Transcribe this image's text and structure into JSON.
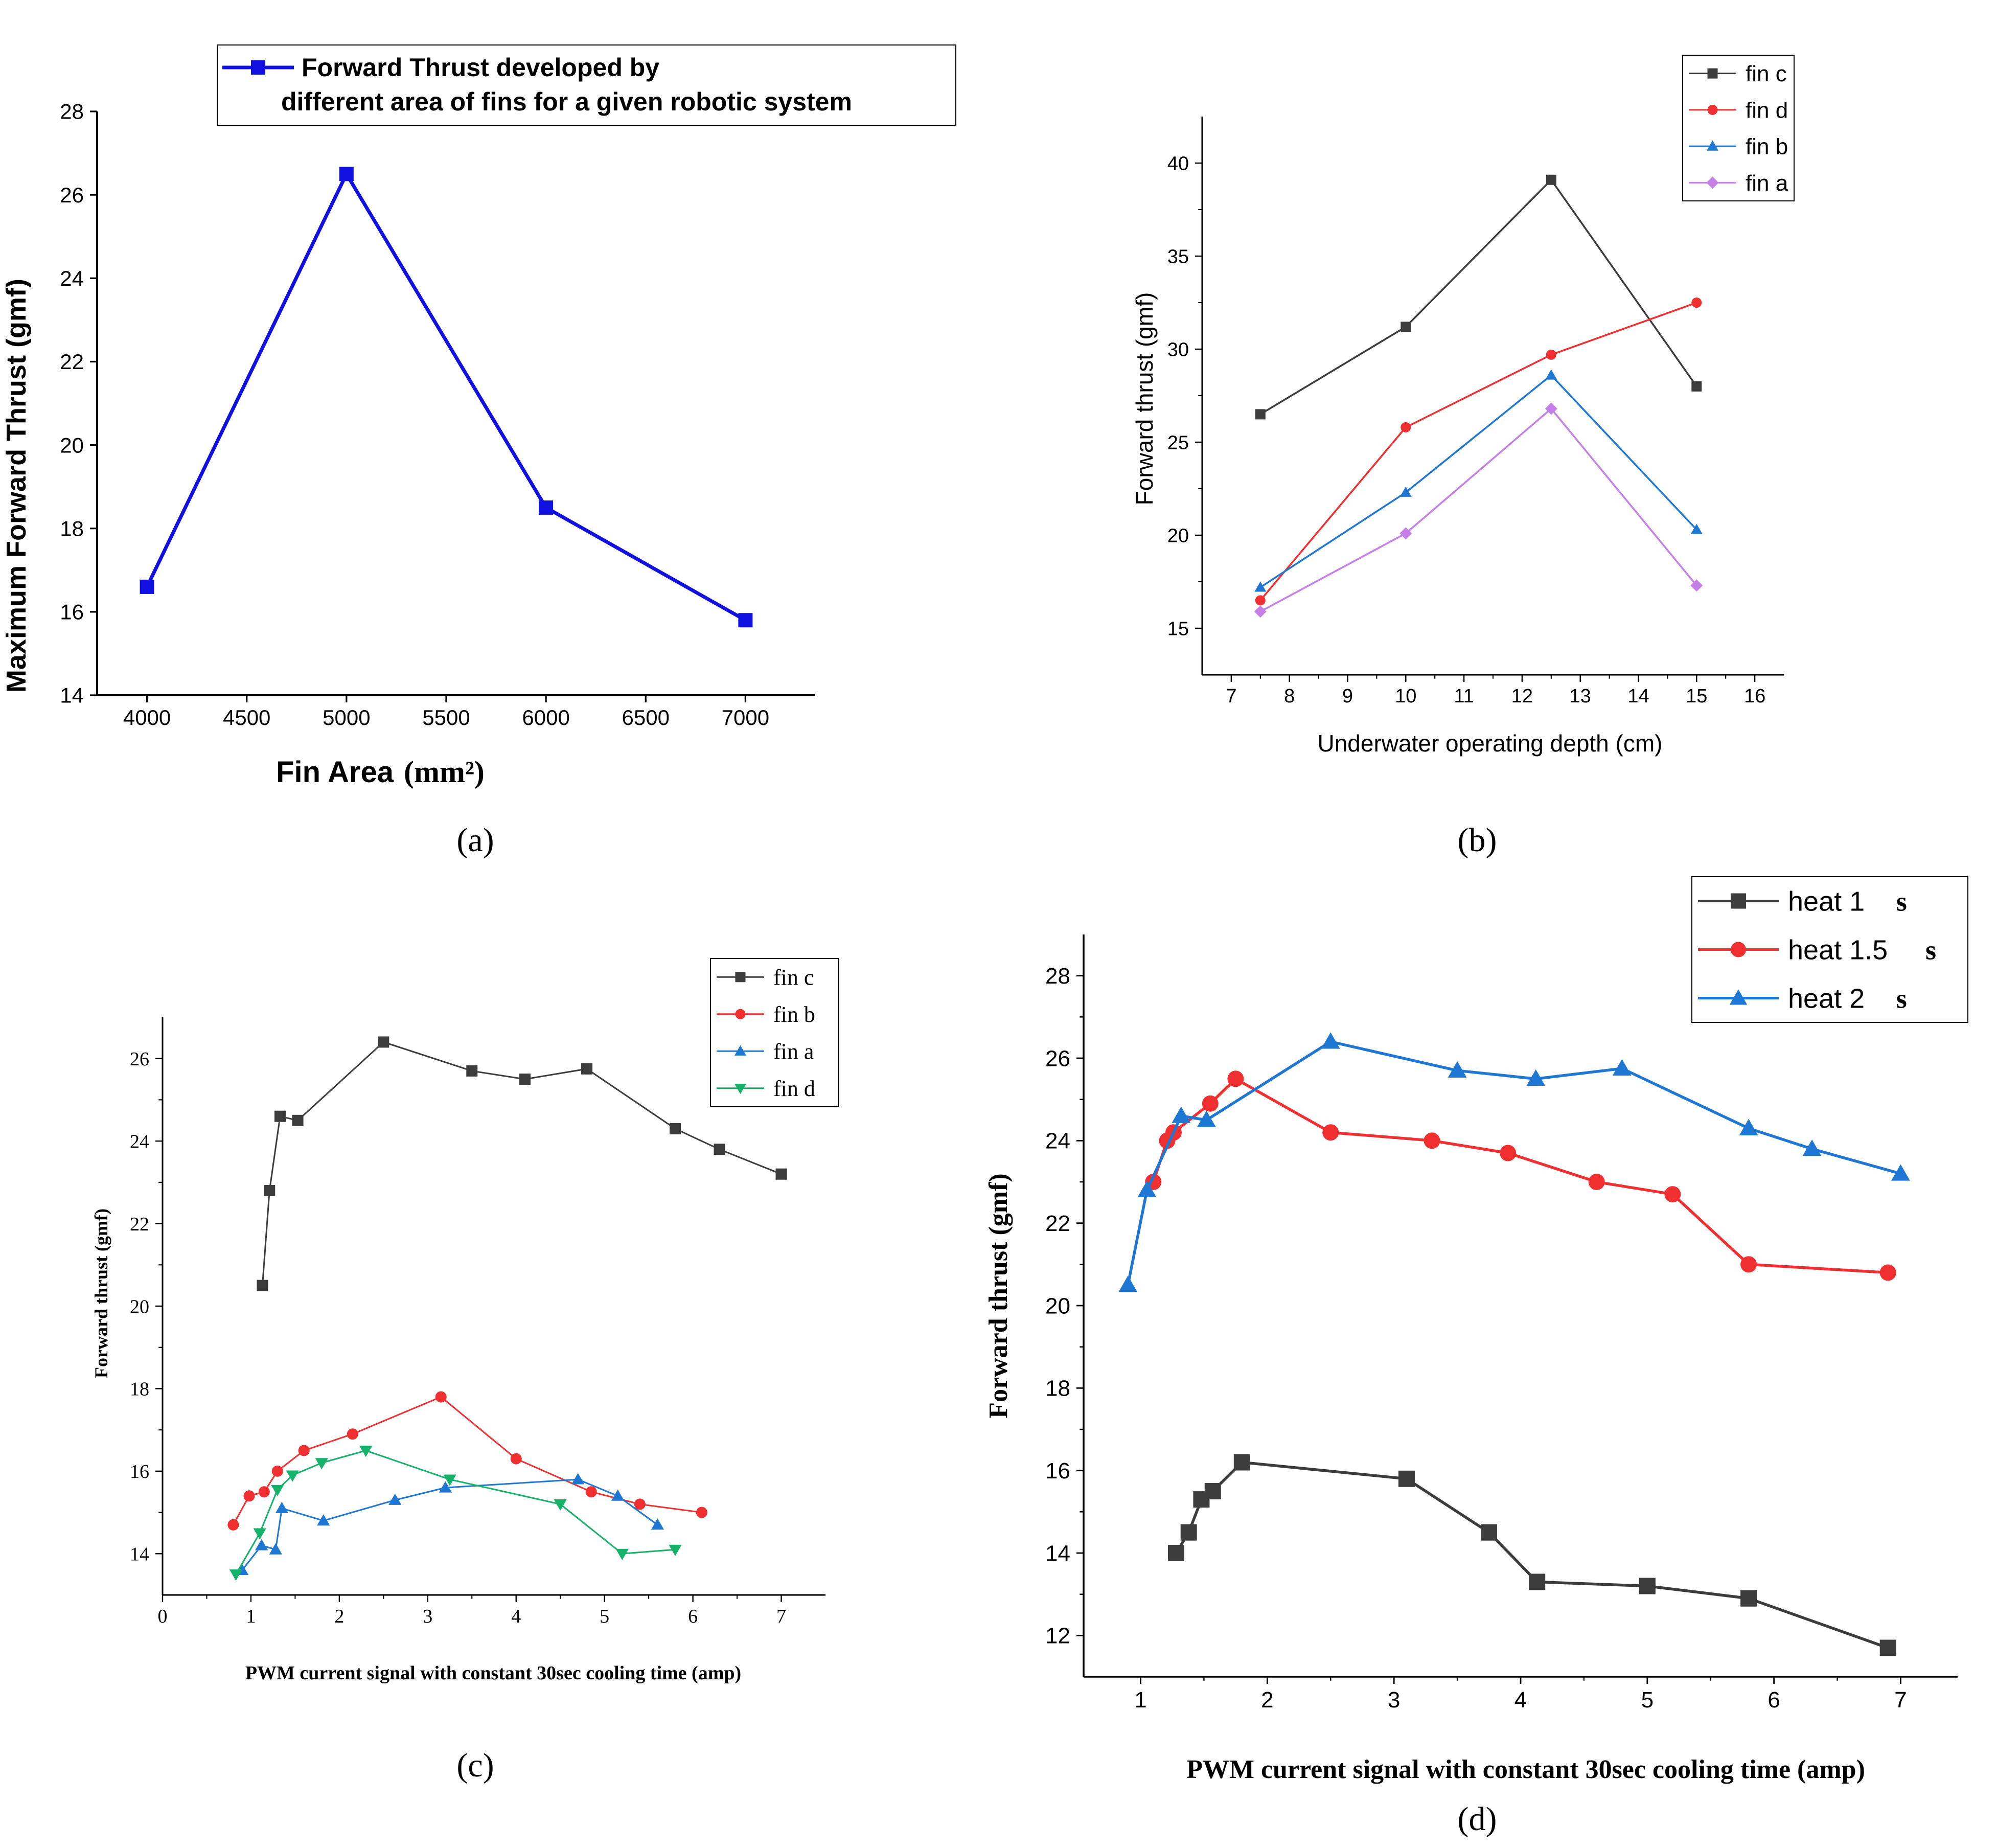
{
  "panels": {
    "a": {
      "caption": "(a)"
    },
    "b": {
      "caption": "(b)"
    },
    "c": {
      "caption": "(c)"
    },
    "d": {
      "caption": "(d)"
    }
  },
  "chart_data": [
    {
      "id": "a",
      "type": "line",
      "title": "",
      "xlabel": "Fin Area",
      "xlabel_unit": "(mm²)",
      "ylabel": "Maximum Forward Thrust (gmf)",
      "xlim": [
        3750,
        7350
      ],
      "ylim": [
        14,
        28
      ],
      "xticks": [
        4000,
        4500,
        5000,
        5500,
        6000,
        6500,
        7000
      ],
      "yticks": [
        14,
        16,
        18,
        20,
        22,
        24,
        26,
        28
      ],
      "legend_position": "top-right",
      "series": [
        {
          "name": "Forward Thrust developed by different area of fins for a given robotic system",
          "legend_lines": [
            "Forward Thrust developed by",
            "different area of fins for a given robotic system"
          ],
          "color": "#1010e0",
          "marker": "square",
          "x": [
            4000,
            5000,
            6000,
            7000
          ],
          "y": [
            16.6,
            26.5,
            18.5,
            15.8
          ]
        }
      ]
    },
    {
      "id": "b",
      "type": "line",
      "title": "",
      "xlabel": "Underwater operating depth (cm)",
      "ylabel": "Forward thrust (gmf)",
      "xlim": [
        6.5,
        16.5
      ],
      "ylim": [
        12.5,
        42.5
      ],
      "xticks": [
        7,
        8,
        9,
        10,
        11,
        12,
        13,
        14,
        15,
        16
      ],
      "yticks": [
        15,
        20,
        25,
        30,
        35,
        40
      ],
      "legend_position": "top-right",
      "series": [
        {
          "name": "fin c",
          "color": "#3c3c3c",
          "marker": "square",
          "x": [
            7.5,
            10,
            12.5,
            15
          ],
          "y": [
            26.5,
            31.2,
            39.1,
            28.0
          ]
        },
        {
          "name": "fin d",
          "color": "#f03030",
          "marker": "circle",
          "x": [
            7.5,
            10,
            12.5,
            15
          ],
          "y": [
            16.5,
            25.8,
            29.7,
            32.5
          ]
        },
        {
          "name": "fin b",
          "color": "#1f77d4",
          "marker": "triangle-up",
          "x": [
            7.5,
            10,
            12.5,
            15
          ],
          "y": [
            17.2,
            22.3,
            28.6,
            20.3
          ]
        },
        {
          "name": "fin a",
          "color": "#c77fe8",
          "marker": "diamond",
          "x": [
            7.5,
            10,
            12.5,
            15
          ],
          "y": [
            15.9,
            20.1,
            26.8,
            17.3
          ]
        }
      ]
    },
    {
      "id": "c",
      "type": "line",
      "title": "",
      "xlabel": "PWM current signal with constant 30sec cooling time (amp)",
      "ylabel": "Forward thrust (gmf)",
      "xlim": [
        0,
        7.5
      ],
      "ylim": [
        13,
        27
      ],
      "xticks": [
        0,
        1,
        2,
        3,
        4,
        5,
        6,
        7
      ],
      "yticks": [
        14,
        16,
        18,
        20,
        22,
        24,
        26
      ],
      "legend_position": "top-right",
      "series": [
        {
          "name": "fin c",
          "color": "#3c3c3c",
          "marker": "square",
          "x": [
            1.13,
            1.21,
            1.33,
            1.53,
            2.5,
            3.5,
            4.1,
            4.8,
            5.8,
            6.3,
            7.0
          ],
          "y": [
            20.5,
            22.8,
            24.6,
            24.5,
            26.4,
            25.7,
            25.5,
            25.75,
            24.3,
            23.8,
            23.2
          ]
        },
        {
          "name": "fin b",
          "color": "#f03030",
          "marker": "circle",
          "x": [
            0.8,
            0.98,
            1.15,
            1.3,
            1.6,
            2.15,
            3.15,
            4.0,
            4.85,
            5.4,
            6.1
          ],
          "y": [
            14.7,
            15.4,
            15.5,
            16.0,
            16.5,
            16.9,
            17.8,
            16.3,
            15.5,
            15.2,
            15.0
          ]
        },
        {
          "name": "fin a",
          "color": "#1f77d4",
          "marker": "triangle-up",
          "x": [
            0.9,
            1.12,
            1.28,
            1.35,
            1.82,
            2.63,
            3.2,
            4.7,
            5.15,
            5.6
          ],
          "y": [
            13.6,
            14.2,
            14.1,
            15.1,
            14.8,
            15.3,
            15.6,
            15.8,
            15.4,
            14.7
          ]
        },
        {
          "name": "fin d",
          "color": "#16b26a",
          "marker": "triangle-down",
          "x": [
            0.83,
            1.1,
            1.3,
            1.47,
            1.8,
            2.3,
            3.25,
            4.5,
            5.2,
            5.8
          ],
          "y": [
            13.5,
            14.5,
            15.55,
            15.9,
            16.2,
            16.5,
            15.8,
            15.2,
            14.0,
            14.1
          ]
        }
      ]
    },
    {
      "id": "d",
      "type": "line",
      "title": "",
      "xlabel": "PWM current signal with constant 30sec cooling time (amp)",
      "ylabel": "Forward thrust (gmf)",
      "xlim": [
        0.55,
        7.45
      ],
      "ylim": [
        11,
        29
      ],
      "xticks": [
        1,
        2,
        3,
        4,
        5,
        6,
        7
      ],
      "yticks": [
        12,
        14,
        16,
        18,
        20,
        22,
        24,
        26,
        28
      ],
      "legend_position": "top-right",
      "series": [
        {
          "name": "heat 1 s",
          "legend_main": "heat 1",
          "legend_unit": "s",
          "color": "#3c3c3c",
          "marker": "square",
          "x": [
            1.28,
            1.38,
            1.48,
            1.57,
            1.8,
            3.1,
            3.75,
            4.13,
            5.0,
            5.8,
            6.9
          ],
          "y": [
            14.0,
            14.5,
            15.3,
            15.5,
            16.2,
            15.8,
            14.5,
            13.3,
            13.2,
            12.9,
            11.7
          ]
        },
        {
          "name": "heat 1.5 s",
          "legend_main": "heat 1.5",
          "legend_unit": "s",
          "color": "#f03030",
          "marker": "circle",
          "x": [
            1.1,
            1.21,
            1.26,
            1.55,
            1.75,
            2.5,
            3.3,
            3.9,
            4.6,
            5.2,
            5.8,
            6.9
          ],
          "y": [
            23.0,
            24.0,
            24.2,
            24.9,
            25.5,
            24.2,
            24.0,
            23.7,
            23.0,
            22.7,
            21.0,
            20.8
          ]
        },
        {
          "name": "heat 2 s",
          "legend_main": "heat 2",
          "legend_unit": "s",
          "color": "#1f77d4",
          "marker": "triangle-up",
          "x": [
            0.9,
            1.05,
            1.32,
            1.52,
            2.5,
            3.5,
            4.12,
            4.8,
            5.8,
            6.3,
            7.0
          ],
          "y": [
            20.5,
            22.8,
            24.6,
            24.5,
            26.4,
            25.7,
            25.5,
            25.75,
            24.3,
            23.8,
            23.2
          ]
        }
      ]
    }
  ]
}
